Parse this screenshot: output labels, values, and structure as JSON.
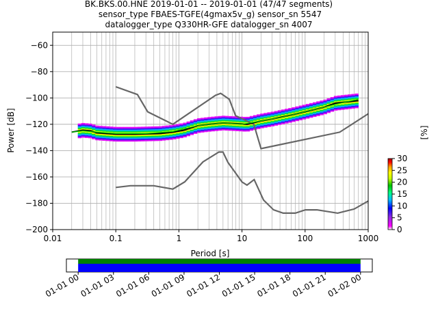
{
  "title": {
    "line1": "BK.BKS.00.HNE   2019-01-01 -- 2019-01-01  (47/47 segments)",
    "line2": "sensor_type FBAES-TGFE(4gmax5v_g) sensor_sn 5547",
    "line3": "datalogger_type Q330HR-GFE datalogger_sn 4007"
  },
  "chart_data": {
    "type": "heatmap",
    "xlabel": "Period [s]",
    "ylabel": "Power [dB]",
    "xscale": "log",
    "xlim": [
      0.01,
      1000
    ],
    "ylim": [
      -200,
      -50
    ],
    "grid": true,
    "x_ticks": [
      {
        "value": 0.01,
        "label": "0.01"
      },
      {
        "value": 0.1,
        "label": "0.1"
      },
      {
        "value": 1,
        "label": "1"
      },
      {
        "value": 10,
        "label": "10"
      },
      {
        "value": 100,
        "label": "100"
      },
      {
        "value": 1000,
        "label": "1000"
      }
    ],
    "y_ticks": [
      -60,
      -80,
      -100,
      -120,
      -140,
      -160,
      -180,
      -200
    ],
    "series": [
      {
        "role": "new-high-noise-model",
        "color": "#666666",
        "points": [
          [
            0.1,
            -91.5
          ],
          [
            0.22,
            -97.4
          ],
          [
            0.32,
            -110.5
          ],
          [
            0.8,
            -120
          ],
          [
            3.8,
            -98
          ],
          [
            4.6,
            -96.5
          ],
          [
            6.3,
            -101
          ],
          [
            7.9,
            -113.5
          ],
          [
            15.4,
            -120
          ],
          [
            20,
            -138.5
          ],
          [
            354,
            -126
          ],
          [
            1000,
            -112
          ]
        ]
      },
      {
        "role": "new-low-noise-model",
        "color": "#666666",
        "points": [
          [
            0.1,
            -168
          ],
          [
            0.17,
            -166.7
          ],
          [
            0.4,
            -166.7
          ],
          [
            0.8,
            -169.2
          ],
          [
            1.24,
            -163.7
          ],
          [
            2.4,
            -148.6
          ],
          [
            4.3,
            -141.1
          ],
          [
            5,
            -141.1
          ],
          [
            6,
            -149
          ],
          [
            10,
            -163.8
          ],
          [
            12,
            -166.2
          ],
          [
            15.6,
            -162
          ],
          [
            21.9,
            -177.5
          ],
          [
            31.6,
            -185
          ],
          [
            45,
            -187.5
          ],
          [
            70,
            -187.5
          ],
          [
            101,
            -185
          ],
          [
            154,
            -185
          ],
          [
            328,
            -187.5
          ],
          [
            600,
            -184.4
          ],
          [
            1000,
            -178.3
          ]
        ]
      },
      {
        "role": "mode",
        "color": "#000000",
        "points": [
          [
            0.02,
            -126
          ],
          [
            0.03,
            -124.5
          ],
          [
            0.04,
            -125
          ],
          [
            0.05,
            -126.5
          ],
          [
            0.1,
            -127.5
          ],
          [
            0.2,
            -127.5
          ],
          [
            0.5,
            -127
          ],
          [
            0.8,
            -126
          ],
          [
            1.2,
            -124.5
          ],
          [
            2,
            -121
          ],
          [
            3,
            -120
          ],
          [
            5,
            -119
          ],
          [
            8,
            -119.5
          ],
          [
            12,
            -120
          ],
          [
            20,
            -117.5
          ],
          [
            30,
            -116
          ],
          [
            60,
            -113
          ],
          [
            100,
            -110.5
          ],
          [
            200,
            -107
          ],
          [
            300,
            -104
          ],
          [
            700,
            -102
          ]
        ]
      },
      {
        "role": "mean",
        "color": "#00d000",
        "points": [
          [
            0.02,
            -126
          ],
          [
            0.03,
            -125
          ],
          [
            0.05,
            -126
          ],
          [
            0.1,
            -127
          ],
          [
            0.3,
            -127
          ],
          [
            0.8,
            -125.5
          ],
          [
            2,
            -121
          ],
          [
            5,
            -119
          ],
          [
            10,
            -120
          ],
          [
            20,
            -117.5
          ],
          [
            40,
            -115
          ],
          [
            100,
            -110.5
          ],
          [
            200,
            -107
          ],
          [
            400,
            -103.5
          ],
          [
            700,
            -101
          ]
        ]
      }
    ]
  },
  "colorbar": {
    "label": "[%]",
    "ticks": [
      0,
      5,
      10,
      15,
      20,
      25,
      30
    ],
    "range": [
      0,
      30
    ],
    "stops": [
      {
        "f": 0.0,
        "color": "#ffffff"
      },
      {
        "f": 0.05,
        "color": "#ff00ff"
      },
      {
        "f": 0.18,
        "color": "#8a2be2"
      },
      {
        "f": 0.3,
        "color": "#0000ff"
      },
      {
        "f": 0.42,
        "color": "#00bfff"
      },
      {
        "f": 0.52,
        "color": "#00ff7f"
      },
      {
        "f": 0.62,
        "color": "#00c000"
      },
      {
        "f": 0.72,
        "color": "#c8ff00"
      },
      {
        "f": 0.8,
        "color": "#ffff00"
      },
      {
        "f": 0.88,
        "color": "#ffa500"
      },
      {
        "f": 0.95,
        "color": "#ff0000"
      },
      {
        "f": 1.0,
        "color": "#a00000"
      }
    ]
  },
  "timeline": {
    "range_hours": [
      -1,
      25
    ],
    "data_start_hour": 0,
    "data_end_hour": 24,
    "top_color": "#008000",
    "bottom_color": "#0000ff",
    "ticks": [
      {
        "hour": 0,
        "label": "01-01 00"
      },
      {
        "hour": 3,
        "label": "01-01 03"
      },
      {
        "hour": 6,
        "label": "01-01 06"
      },
      {
        "hour": 9,
        "label": "01-01 09"
      },
      {
        "hour": 12,
        "label": "01-01 12"
      },
      {
        "hour": 15,
        "label": "01-01 15"
      },
      {
        "hour": 18,
        "label": "01-01 18"
      },
      {
        "hour": 21,
        "label": "01-01 21"
      },
      {
        "hour": 24,
        "label": "01-02 00"
      }
    ]
  }
}
